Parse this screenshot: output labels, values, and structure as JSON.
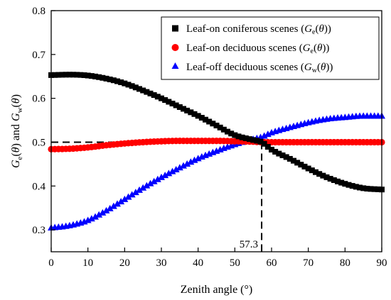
{
  "chart_data": {
    "type": "scatter",
    "xlabel": "Zenith angle (°)",
    "ylabel": "G_e(θ) and G_w(θ)",
    "xlim": [
      0,
      90
    ],
    "ylim": [
      0.25,
      0.8
    ],
    "x_ticks": [
      0,
      10,
      20,
      30,
      40,
      50,
      60,
      70,
      80,
      90
    ],
    "y_ticks": [
      0.3,
      0.4,
      0.5,
      0.6,
      0.7,
      0.8
    ],
    "grid": false,
    "legend_position": "top-right",
    "series": [
      {
        "name": "Leaf-on coniferous scenes",
        "symbol": "G_e(θ)",
        "marker": "square",
        "color": "#000000",
        "x": [
          0,
          5,
          10,
          15,
          20,
          25,
          30,
          35,
          40,
          45,
          50,
          55,
          57.3,
          60,
          65,
          70,
          75,
          80,
          85,
          90
        ],
        "y": [
          0.653,
          0.654,
          0.652,
          0.645,
          0.634,
          0.618,
          0.6,
          0.58,
          0.56,
          0.538,
          0.516,
          0.505,
          0.5,
          0.483,
          0.462,
          0.44,
          0.42,
          0.405,
          0.395,
          0.392
        ]
      },
      {
        "name": "Leaf-on deciduous scenes",
        "symbol": "G_e(θ)",
        "marker": "circle",
        "color": "#ff0000",
        "x": [
          0,
          5,
          10,
          15,
          20,
          25,
          30,
          35,
          40,
          45,
          50,
          55,
          57.3,
          60,
          65,
          70,
          75,
          80,
          85,
          90
        ],
        "y": [
          0.484,
          0.485,
          0.488,
          0.493,
          0.497,
          0.5,
          0.502,
          0.503,
          0.503,
          0.503,
          0.502,
          0.501,
          0.5,
          0.5,
          0.5,
          0.5,
          0.5,
          0.5,
          0.5,
          0.5
        ]
      },
      {
        "name": "Leaf-off deciduous scenes",
        "symbol": "G_w(θ)",
        "marker": "triangle",
        "color": "#0000ff",
        "x": [
          0,
          5,
          10,
          15,
          20,
          25,
          30,
          35,
          40,
          45,
          50,
          55,
          57.3,
          60,
          65,
          70,
          75,
          80,
          85,
          90
        ],
        "y": [
          0.305,
          0.31,
          0.322,
          0.344,
          0.37,
          0.396,
          0.42,
          0.442,
          0.463,
          0.48,
          0.495,
          0.507,
          0.512,
          0.522,
          0.534,
          0.545,
          0.553,
          0.557,
          0.56,
          0.56
        ]
      }
    ],
    "reference_lines": {
      "horizontal_y": 0.5,
      "vertical_x": 57.3,
      "style": "dashed"
    },
    "annotations": [
      {
        "text": "57.3",
        "x": 57.3
      }
    ]
  }
}
